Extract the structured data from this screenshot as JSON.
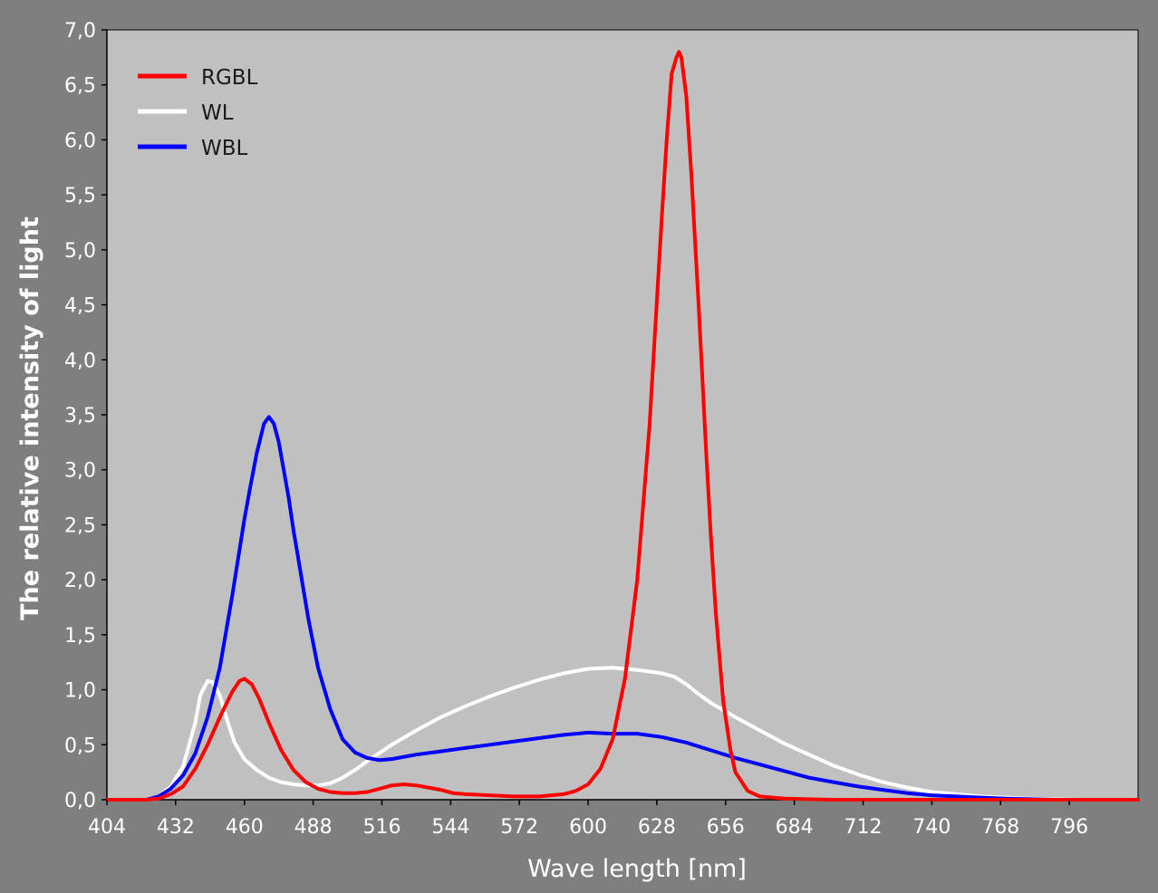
{
  "chart_data": {
    "type": "line",
    "title": "",
    "xlabel": "Wave length [nm]",
    "ylabel": "The relative intensity of light",
    "xlim": [
      404,
      824
    ],
    "ylim": [
      0,
      7
    ],
    "xticks": [
      404,
      432,
      460,
      488,
      516,
      544,
      572,
      600,
      628,
      656,
      684,
      712,
      740,
      768,
      796
    ],
    "yticks": [
      0,
      0.5,
      1,
      1.5,
      2,
      2.5,
      3,
      3.5,
      4,
      4.5,
      5,
      5.5,
      6,
      6.5,
      7
    ],
    "xtick_labels": [
      "404",
      "432",
      "460",
      "488",
      "516",
      "544",
      "572",
      "600",
      "628",
      "656",
      "684",
      "712",
      "740",
      "768",
      "796"
    ],
    "ytick_labels": [
      "0,0",
      "0,5",
      "1,0",
      "1,5",
      "2,0",
      "2,5",
      "3,0",
      "3,5",
      "4,0",
      "4,5",
      "5,0",
      "5,5",
      "6,0",
      "6,5",
      "7,0"
    ],
    "grid": false,
    "legend": "top-left",
    "plot_background": "#c0c0c0",
    "series": [
      {
        "name": "RGBL",
        "color": "#ff0000",
        "x": [
          404,
          420,
          425,
          430,
          435,
          440,
          445,
          450,
          455,
          458,
          460,
          463,
          466,
          470,
          475,
          480,
          485,
          490,
          495,
          500,
          505,
          510,
          515,
          520,
          525,
          530,
          535,
          540,
          545,
          550,
          560,
          570,
          580,
          590,
          595,
          600,
          605,
          610,
          615,
          620,
          625,
          630,
          632,
          634,
          636,
          637,
          638,
          640,
          642,
          645,
          648,
          650,
          652,
          655,
          658,
          660,
          665,
          670,
          680,
          700,
          800,
          824
        ],
        "y": [
          0,
          0,
          0.01,
          0.05,
          0.12,
          0.28,
          0.5,
          0.75,
          0.98,
          1.08,
          1.1,
          1.05,
          0.92,
          0.7,
          0.45,
          0.27,
          0.16,
          0.1,
          0.07,
          0.06,
          0.06,
          0.07,
          0.1,
          0.13,
          0.14,
          0.13,
          0.11,
          0.09,
          0.06,
          0.05,
          0.04,
          0.03,
          0.03,
          0.05,
          0.08,
          0.14,
          0.28,
          0.55,
          1.1,
          2.0,
          3.4,
          5.3,
          6.0,
          6.6,
          6.75,
          6.8,
          6.75,
          6.4,
          5.7,
          4.5,
          3.2,
          2.4,
          1.7,
          0.9,
          0.45,
          0.25,
          0.08,
          0.03,
          0.01,
          0,
          0,
          0
        ]
      },
      {
        "name": "WL",
        "color": "#ffffff",
        "x": [
          404,
          420,
          425,
          430,
          435,
          440,
          442,
          445,
          447,
          450,
          453,
          456,
          460,
          465,
          470,
          475,
          480,
          485,
          490,
          495,
          500,
          505,
          510,
          520,
          530,
          540,
          550,
          560,
          570,
          580,
          590,
          600,
          610,
          620,
          630,
          635,
          640,
          645,
          650,
          660,
          670,
          680,
          690,
          700,
          710,
          720,
          730,
          740,
          750,
          760,
          770,
          780,
          790,
          800,
          810,
          824
        ],
        "y": [
          0,
          0,
          0.03,
          0.12,
          0.3,
          0.7,
          0.95,
          1.08,
          1.07,
          0.95,
          0.72,
          0.52,
          0.37,
          0.27,
          0.2,
          0.16,
          0.14,
          0.13,
          0.13,
          0.15,
          0.2,
          0.27,
          0.35,
          0.5,
          0.63,
          0.75,
          0.85,
          0.94,
          1.02,
          1.09,
          1.15,
          1.19,
          1.2,
          1.18,
          1.15,
          1.12,
          1.05,
          0.96,
          0.88,
          0.75,
          0.63,
          0.51,
          0.41,
          0.31,
          0.23,
          0.16,
          0.11,
          0.07,
          0.05,
          0.03,
          0.02,
          0.01,
          0.005,
          0,
          0,
          0
        ]
      },
      {
        "name": "WBL",
        "color": "#0000ff",
        "x": [
          404,
          420,
          425,
          430,
          435,
          440,
          445,
          450,
          455,
          460,
          462,
          465,
          468,
          470,
          472,
          474,
          476,
          478,
          480,
          483,
          486,
          490,
          495,
          500,
          505,
          510,
          515,
          520,
          525,
          530,
          540,
          550,
          560,
          570,
          580,
          590,
          600,
          610,
          620,
          630,
          640,
          650,
          660,
          670,
          680,
          690,
          700,
          710,
          720,
          730,
          740,
          750,
          760,
          770,
          780,
          790,
          800,
          810,
          824
        ],
        "y": [
          0,
          0,
          0.03,
          0.1,
          0.22,
          0.42,
          0.75,
          1.2,
          1.85,
          2.55,
          2.8,
          3.15,
          3.42,
          3.48,
          3.42,
          3.25,
          3.0,
          2.75,
          2.45,
          2.05,
          1.65,
          1.2,
          0.82,
          0.55,
          0.43,
          0.38,
          0.36,
          0.37,
          0.39,
          0.41,
          0.44,
          0.47,
          0.5,
          0.53,
          0.56,
          0.59,
          0.61,
          0.6,
          0.6,
          0.57,
          0.52,
          0.45,
          0.38,
          0.32,
          0.26,
          0.2,
          0.16,
          0.12,
          0.09,
          0.06,
          0.04,
          0.03,
          0.02,
          0.01,
          0.005,
          0,
          0,
          0,
          0
        ]
      }
    ]
  }
}
